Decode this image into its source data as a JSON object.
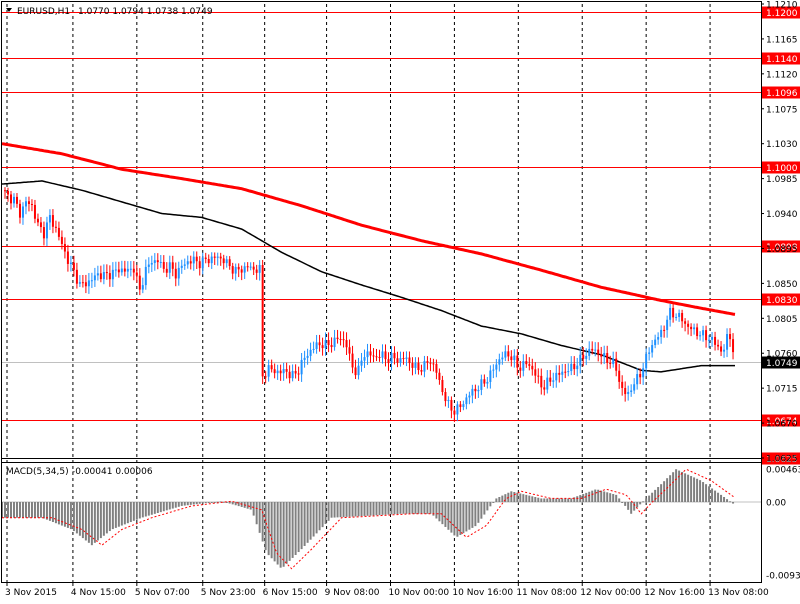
{
  "header": {
    "symbol": "EURUSD,H1",
    "ohlc": "1.0770 1.0794 1.0738 1.0749"
  },
  "macd": {
    "label": "MACD(5,34,5)",
    "values": "-0.00041 0.00006",
    "axis_ticks": [
      {
        "value": 0.00463,
        "label": "0.00463"
      },
      {
        "value": 0.0,
        "label": "0.00"
      },
      {
        "value": -0.0093,
        "label": "-0.0093"
      }
    ]
  },
  "colors": {
    "background": "#ffffff",
    "grid": "#000000",
    "level_line": "#ff0000",
    "candle_up": "#1e90ff",
    "candle_down": "#ff0000",
    "ma_fast": "#000000",
    "ma_slow": "#ff0000",
    "macd_hist": "#808080",
    "macd_signal": "#ff0000",
    "current_price_bg": "#000000"
  },
  "chart_data": {
    "type": "candlestick",
    "instrument": "EURUSD",
    "timeframe": "H1",
    "price_axis": {
      "ylim": [
        1.0625,
        1.121
      ],
      "ticks": [
        "1.1210",
        "1.1165",
        "1.1120",
        "1.1075",
        "1.1030",
        "1.0985",
        "1.0940",
        "1.0895",
        "1.0850",
        "1.0805",
        "1.0760",
        "1.0715",
        "1.0670",
        "1.0625"
      ]
    },
    "time_axis": {
      "labels": [
        "3 Nov 2015",
        "4 Nov 15:00",
        "5 Nov 07:00",
        "5 Nov 23:00",
        "6 Nov 15:00",
        "9 Nov 08:00",
        "10 Nov 00:00",
        "10 Nov 16:00",
        "11 Nov 08:00",
        "12 Nov 00:00",
        "12 Nov 16:00",
        "13 Nov 08:00"
      ]
    },
    "levels": [
      {
        "value": 1.12,
        "label": "1.1200"
      },
      {
        "value": 1.114,
        "label": "1.1140"
      },
      {
        "value": 1.1096,
        "label": "1.1096"
      },
      {
        "value": 1.1,
        "label": "1.1000"
      },
      {
        "value": 1.0898,
        "label": "1.0898"
      },
      {
        "value": 1.083,
        "label": "1.0830"
      },
      {
        "value": 1.0674,
        "label": "1.0674"
      },
      {
        "value": 1.0625,
        "label": "1.0625"
      }
    ],
    "current_price": {
      "value": 1.0749,
      "label": "1.0749"
    },
    "price_path": [
      {
        "t": 0,
        "p": 1.097
      },
      {
        "t": 6,
        "p": 1.0962
      },
      {
        "t": 12,
        "p": 1.0958
      },
      {
        "t": 18,
        "p": 1.094
      },
      {
        "t": 24,
        "p": 1.0955
      },
      {
        "t": 30,
        "p": 1.095
      },
      {
        "t": 36,
        "p": 1.0925
      },
      {
        "t": 42,
        "p": 1.0915
      },
      {
        "t": 48,
        "p": 1.0935
      },
      {
        "t": 54,
        "p": 1.092
      },
      {
        "t": 60,
        "p": 1.09
      },
      {
        "t": 66,
        "p": 1.088
      },
      {
        "t": 72,
        "p": 1.0865
      },
      {
        "t": 78,
        "p": 1.0848
      },
      {
        "t": 84,
        "p": 1.085
      },
      {
        "t": 90,
        "p": 1.0855
      },
      {
        "t": 96,
        "p": 1.0862
      },
      {
        "t": 102,
        "p": 1.086
      },
      {
        "t": 108,
        "p": 1.0862
      },
      {
        "t": 114,
        "p": 1.0866
      },
      {
        "t": 120,
        "p": 1.0868
      },
      {
        "t": 126,
        "p": 1.0866
      },
      {
        "t": 132,
        "p": 1.087
      },
      {
        "t": 138,
        "p": 1.084
      },
      {
        "t": 144,
        "p": 1.0868
      },
      {
        "t": 150,
        "p": 1.0878
      },
      {
        "t": 156,
        "p": 1.088
      },
      {
        "t": 162,
        "p": 1.0868
      },
      {
        "t": 168,
        "p": 1.0872
      },
      {
        "t": 174,
        "p": 1.0862
      },
      {
        "t": 180,
        "p": 1.0872
      },
      {
        "t": 186,
        "p": 1.0878
      },
      {
        "t": 192,
        "p": 1.088
      },
      {
        "t": 198,
        "p": 1.0876
      },
      {
        "t": 204,
        "p": 1.088
      },
      {
        "t": 210,
        "p": 1.0882
      },
      {
        "t": 216,
        "p": 1.0884
      },
      {
        "t": 222,
        "p": 1.088
      },
      {
        "t": 228,
        "p": 1.0872
      },
      {
        "t": 234,
        "p": 1.0866
      },
      {
        "t": 240,
        "p": 1.0868
      },
      {
        "t": 246,
        "p": 1.0872
      },
      {
        "t": 252,
        "p": 1.0868
      },
      {
        "t": 258,
        "p": 1.0868
      },
      {
        "t": 260,
        "p": 1.0728
      },
      {
        "t": 266,
        "p": 1.074
      },
      {
        "t": 272,
        "p": 1.0738
      },
      {
        "t": 278,
        "p": 1.0735
      },
      {
        "t": 284,
        "p": 1.0738
      },
      {
        "t": 290,
        "p": 1.073
      },
      {
        "t": 296,
        "p": 1.0736
      },
      {
        "t": 302,
        "p": 1.0752
      },
      {
        "t": 308,
        "p": 1.0762
      },
      {
        "t": 314,
        "p": 1.077
      },
      {
        "t": 320,
        "p": 1.0772
      },
      {
        "t": 326,
        "p": 1.077
      },
      {
        "t": 332,
        "p": 1.0775
      },
      {
        "t": 338,
        "p": 1.078
      },
      {
        "t": 344,
        "p": 1.0775
      },
      {
        "t": 350,
        "p": 1.0745
      },
      {
        "t": 356,
        "p": 1.0733
      },
      {
        "t": 362,
        "p": 1.076
      },
      {
        "t": 368,
        "p": 1.0758
      },
      {
        "t": 374,
        "p": 1.0755
      },
      {
        "t": 380,
        "p": 1.0758
      },
      {
        "t": 386,
        "p": 1.0752
      },
      {
        "t": 392,
        "p": 1.0755
      },
      {
        "t": 398,
        "p": 1.075
      },
      {
        "t": 404,
        "p": 1.0755
      },
      {
        "t": 410,
        "p": 1.0745
      },
      {
        "t": 416,
        "p": 1.074
      },
      {
        "t": 422,
        "p": 1.0742
      },
      {
        "t": 428,
        "p": 1.0752
      },
      {
        "t": 434,
        "p": 1.074
      },
      {
        "t": 440,
        "p": 1.0715
      },
      {
        "t": 446,
        "p": 1.0695
      },
      {
        "t": 452,
        "p": 1.0685
      },
      {
        "t": 458,
        "p": 1.069
      },
      {
        "t": 464,
        "p": 1.07
      },
      {
        "t": 470,
        "p": 1.071
      },
      {
        "t": 476,
        "p": 1.0715
      },
      {
        "t": 482,
        "p": 1.0722
      },
      {
        "t": 488,
        "p": 1.073
      },
      {
        "t": 494,
        "p": 1.0745
      },
      {
        "t": 500,
        "p": 1.0755
      },
      {
        "t": 506,
        "p": 1.076
      },
      {
        "t": 512,
        "p": 1.0752
      },
      {
        "t": 518,
        "p": 1.074
      },
      {
        "t": 524,
        "p": 1.0748
      },
      {
        "t": 530,
        "p": 1.0742
      },
      {
        "t": 536,
        "p": 1.0728
      },
      {
        "t": 542,
        "p": 1.0715
      },
      {
        "t": 548,
        "p": 1.0725
      },
      {
        "t": 554,
        "p": 1.073
      },
      {
        "t": 560,
        "p": 1.0735
      },
      {
        "t": 566,
        "p": 1.0738
      },
      {
        "t": 572,
        "p": 1.0742
      },
      {
        "t": 578,
        "p": 1.075
      },
      {
        "t": 584,
        "p": 1.0758
      },
      {
        "t": 590,
        "p": 1.0765
      },
      {
        "t": 596,
        "p": 1.0762
      },
      {
        "t": 602,
        "p": 1.0755
      },
      {
        "t": 608,
        "p": 1.075
      },
      {
        "t": 614,
        "p": 1.0745
      },
      {
        "t": 620,
        "p": 1.0715
      },
      {
        "t": 626,
        "p": 1.0705
      },
      {
        "t": 632,
        "p": 1.072
      },
      {
        "t": 638,
        "p": 1.073
      },
      {
        "t": 644,
        "p": 1.075
      },
      {
        "t": 650,
        "p": 1.077
      },
      {
        "t": 656,
        "p": 1.078
      },
      {
        "t": 662,
        "p": 1.079
      },
      {
        "t": 668,
        "p": 1.0812
      },
      {
        "t": 674,
        "p": 1.081
      },
      {
        "t": 680,
        "p": 1.0805
      },
      {
        "t": 686,
        "p": 1.0795
      },
      {
        "t": 692,
        "p": 1.079
      },
      {
        "t": 698,
        "p": 1.0785
      },
      {
        "t": 704,
        "p": 1.0782
      },
      {
        "t": 710,
        "p": 1.0778
      },
      {
        "t": 716,
        "p": 1.077
      },
      {
        "t": 722,
        "p": 1.076
      },
      {
        "t": 728,
        "p": 1.079
      },
      {
        "t": 734,
        "p": 1.0749
      }
    ],
    "ma_fast_path": [
      {
        "t": 0,
        "p": 1.0978
      },
      {
        "t": 40,
        "p": 1.0982
      },
      {
        "t": 80,
        "p": 1.097
      },
      {
        "t": 120,
        "p": 1.0955
      },
      {
        "t": 160,
        "p": 1.094
      },
      {
        "t": 200,
        "p": 1.0935
      },
      {
        "t": 240,
        "p": 1.092
      },
      {
        "t": 280,
        "p": 1.089
      },
      {
        "t": 320,
        "p": 1.0865
      },
      {
        "t": 360,
        "p": 1.0848
      },
      {
        "t": 400,
        "p": 1.0832
      },
      {
        "t": 440,
        "p": 1.0815
      },
      {
        "t": 480,
        "p": 1.0795
      },
      {
        "t": 520,
        "p": 1.0785
      },
      {
        "t": 560,
        "p": 1.077
      },
      {
        "t": 600,
        "p": 1.0758
      },
      {
        "t": 640,
        "p": 1.0738
      },
      {
        "t": 660,
        "p": 1.0736
      },
      {
        "t": 700,
        "p": 1.0744
      },
      {
        "t": 734,
        "p": 1.0744
      }
    ],
    "ma_slow_path": [
      {
        "t": 0,
        "p": 1.103
      },
      {
        "t": 60,
        "p": 1.1017
      },
      {
        "t": 120,
        "p": 1.0997
      },
      {
        "t": 180,
        "p": 1.0985
      },
      {
        "t": 240,
        "p": 1.0972
      },
      {
        "t": 300,
        "p": 1.095
      },
      {
        "t": 360,
        "p": 1.0925
      },
      {
        "t": 420,
        "p": 1.0905
      },
      {
        "t": 480,
        "p": 1.0888
      },
      {
        "t": 540,
        "p": 1.0867
      },
      {
        "t": 600,
        "p": 1.0845
      },
      {
        "t": 660,
        "p": 1.0828
      },
      {
        "t": 700,
        "p": 1.0818
      },
      {
        "t": 734,
        "p": 1.081
      }
    ],
    "macd_hist_path": [
      {
        "t": 0,
        "p": -0.002
      },
      {
        "t": 40,
        "p": -0.002
      },
      {
        "t": 70,
        "p": -0.0035
      },
      {
        "t": 90,
        "p": -0.0055
      },
      {
        "t": 110,
        "p": -0.0035
      },
      {
        "t": 140,
        "p": -0.002
      },
      {
        "t": 180,
        "p": -0.0005
      },
      {
        "t": 220,
        "p": 0.0001
      },
      {
        "t": 250,
        "p": -0.001
      },
      {
        "t": 265,
        "p": -0.0065
      },
      {
        "t": 280,
        "p": -0.0085
      },
      {
        "t": 300,
        "p": -0.006
      },
      {
        "t": 330,
        "p": -0.002
      },
      {
        "t": 360,
        "p": -0.0018
      },
      {
        "t": 400,
        "p": -0.0015
      },
      {
        "t": 430,
        "p": -0.0015
      },
      {
        "t": 455,
        "p": -0.0045
      },
      {
        "t": 475,
        "p": -0.003
      },
      {
        "t": 495,
        "p": 0.0005
      },
      {
        "t": 510,
        "p": 0.0015
      },
      {
        "t": 540,
        "p": 0.0005
      },
      {
        "t": 570,
        "p": 0.0005
      },
      {
        "t": 595,
        "p": 0.0018
      },
      {
        "t": 615,
        "p": 0.001
      },
      {
        "t": 630,
        "p": -0.0015
      },
      {
        "t": 645,
        "p": 0.0005
      },
      {
        "t": 660,
        "p": 0.0025
      },
      {
        "t": 675,
        "p": 0.0046
      },
      {
        "t": 700,
        "p": 0.003
      },
      {
        "t": 720,
        "p": 0.001
      },
      {
        "t": 734,
        "p": -0.0004
      }
    ]
  }
}
